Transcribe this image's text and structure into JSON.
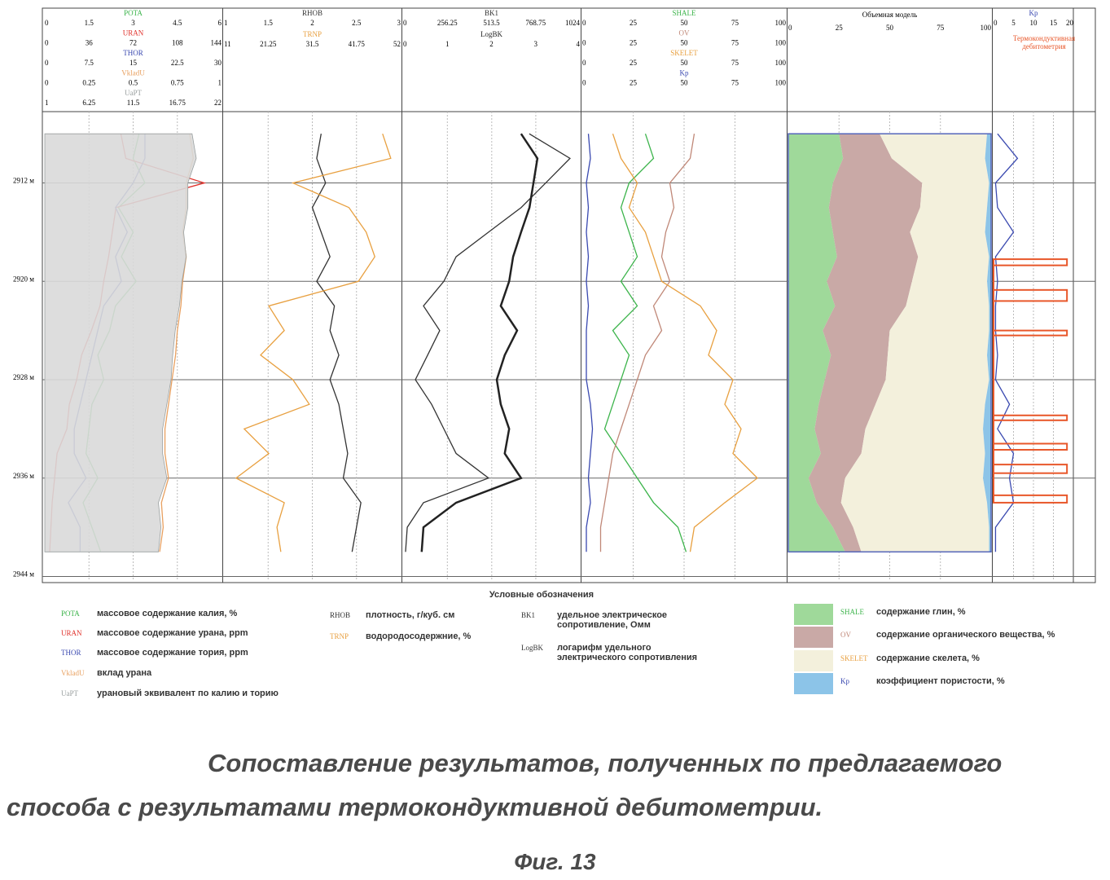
{
  "chart_data": {
    "type": "well-log",
    "depth": [
      2908,
      2910,
      2912,
      2914,
      2916,
      2918,
      2920,
      2922,
      2924,
      2926,
      2928,
      2930,
      2932,
      2934,
      2936,
      2938,
      2940,
      2942
    ],
    "ylim": [
      2906.2,
      2944.3
    ],
    "yticks": [
      {
        "value": 2912,
        "label": "2912 м"
      },
      {
        "value": 2920,
        "label": "2920 м"
      },
      {
        "value": 2928,
        "label": "2928 м"
      },
      {
        "value": 2936,
        "label": "2936 м"
      },
      {
        "value": 2944,
        "label": "2944 м"
      }
    ],
    "tracks": [
      {
        "type": "curves",
        "curves": [
          {
            "name": "POTA",
            "color": "#3cb44b",
            "scale": [
              0,
              1.5,
              3,
              4.5,
              6
            ],
            "values": [
              3.2,
              3.0,
              3.4,
              2.5,
              3.0,
              2.6,
              3.1,
              2.4,
              2.2,
              1.8,
              2.0,
              1.6,
              1.5,
              1.4,
              1.8,
              1.3,
              1.6,
              1.9
            ]
          },
          {
            "name": "URAN",
            "color": "#e0302a",
            "scale": [
              0,
              36,
              72,
              108,
              144
            ],
            "values": [
              62,
              66,
              130,
              58,
              55,
              52,
              48,
              45,
              38,
              30,
              26,
              20,
              18,
              10,
              8,
              6,
              5,
              4
            ]
          },
          {
            "name": "THOR",
            "color": "#3a49b0",
            "scale": [
              0,
              7.5,
              15,
              22.5,
              30
            ],
            "values": [
              17,
              17,
              15,
              12,
              14,
              12,
              13,
              10,
              9,
              8,
              7,
              6,
              5,
              5,
              7,
              4,
              6,
              6
            ]
          },
          {
            "name": "VkladU",
            "color": "#e8a060",
            "scale": [
              0,
              0.25,
              0.5,
              0.75,
              1
            ],
            "values": [
              0.82,
              0.84,
              0.8,
              0.8,
              0.78,
              0.8,
              0.78,
              0.77,
              0.75,
              0.74,
              0.72,
              0.7,
              0.68,
              0.68,
              0.7,
              0.66,
              0.67,
              0.65
            ]
          },
          {
            "name": "UaPT",
            "color": "#9aa0a0",
            "fill": "#d9d9d9",
            "scale": [
              1,
              6.25,
              11.5,
              16.75,
              22
            ],
            "values": [
              18.5,
              19,
              18,
              18,
              17.5,
              17.8,
              17.3,
              17,
              16.5,
              16.2,
              16,
              15.5,
              15,
              15,
              15.5,
              14.5,
              14.8,
              14.5
            ]
          }
        ]
      },
      {
        "type": "curves",
        "curves": [
          {
            "name": "RHOB",
            "color": "#333333",
            "scale": [
              1,
              1.5,
              2,
              2.5,
              3
            ],
            "values": [
              2.1,
              2.05,
              2.15,
              2.0,
              2.1,
              2.2,
              2.05,
              2.25,
              2.2,
              2.3,
              2.2,
              2.3,
              2.35,
              2.4,
              2.35,
              2.55,
              2.5,
              2.45
            ]
          },
          {
            "name": "TRNP",
            "color": "#e8a040",
            "scale": [
              11,
              21.25,
              31.5,
              41.75,
              52
            ],
            "values": [
              47.8,
              49.7,
              27,
              40,
              44,
              46,
              42.2,
              21.4,
              25,
              19.5,
              27,
              30.8,
              15.7,
              21.4,
              13.8,
              25,
              23.3,
              24.2
            ]
          }
        ]
      },
      {
        "type": "curves",
        "curves": [
          {
            "name": "BK1",
            "color": "#333333",
            "scale": [
              0,
              256.25,
              513.5,
              768.75,
              1024
            ],
            "values": [
              731,
              967,
              826,
              684,
              495,
              307,
              236,
              118,
              212,
              142,
              71,
              165,
              236,
              307,
              495,
              118,
              24,
              14
            ]
          },
          {
            "name": "LogBK",
            "color": "#222222",
            "width": 2.5,
            "scale": [
              0,
              1,
              2,
              3,
              4
            ],
            "values": [
              2.67,
              3.04,
              2.95,
              2.86,
              2.67,
              2.49,
              2.4,
              2.21,
              2.58,
              2.3,
              2.12,
              2.21,
              2.4,
              2.3,
              2.67,
              1.2,
              0.46,
              0.42
            ]
          }
        ]
      },
      {
        "type": "curves",
        "curves": [
          {
            "name": "SHALE",
            "color": "#3cb44b",
            "scale": [
              0,
              25,
              50,
              75,
              100
            ],
            "values": [
              31,
              35,
              23,
              19,
              23,
              27,
              19,
              27,
              15,
              23,
              19,
              15,
              11,
              19,
              27,
              35,
              47,
              51
            ]
          },
          {
            "name": "OV",
            "color": "#c08878",
            "scale": [
              0,
              25,
              50,
              75,
              100
            ],
            "values": [
              55,
              53,
              43,
              45,
              41,
              39,
              43,
              35,
              39,
              31,
              27,
              23,
              19,
              15,
              13,
              11,
              9,
              9
            ]
          },
          {
            "name": "SKELET",
            "color": "#e8a040",
            "scale": [
              0,
              25,
              50,
              75,
              100
            ],
            "values": [
              15,
              19,
              27,
              23,
              31,
              35,
              39,
              58,
              66,
              62,
              74,
              70,
              78,
              74,
              86,
              70,
              55,
              53
            ]
          },
          {
            "name": "Kp",
            "color": "#3a49b0",
            "scale": [
              0,
              25,
              50,
              75,
              100
            ],
            "values": [
              3,
              4,
              2,
              3,
              2,
              3,
              2,
              3,
              2,
              2,
              2,
              4,
              5,
              4,
              3,
              4,
              2,
              2
            ]
          }
        ]
      },
      {
        "type": "stacked-area",
        "title": "Объемная модель",
        "scale": [
          0,
          25,
          50,
          75,
          100
        ],
        "series": [
          {
            "name": "SHALE",
            "color": "#9fd99a",
            "values": [
              25,
              27,
              22,
              20,
              22,
              24,
              19,
              23,
              17,
              21,
              18,
              15,
              13,
              16,
              10,
              14,
              22,
              28
            ]
          },
          {
            "name": "OV",
            "color": "#c9a9a6",
            "values": [
              20,
              24,
              44,
              45,
              38,
              40,
              42,
              35,
              33,
              28,
              30,
              28,
              25,
              20,
              18,
              12,
              10,
              8
            ]
          },
          {
            "name": "SKELET",
            "color": "#f3f0dc",
            "values": [
              53,
              46,
              33,
              33,
              37,
              35,
              37,
              41,
              49,
              49,
              51,
              54,
              58,
              61,
              68,
              72,
              67,
              63
            ]
          },
          {
            "name": "Kp",
            "color": "#8cc4e8",
            "values": [
              2,
              3,
              1,
              2,
              3,
              1,
              2,
              1,
              1,
              2,
              1,
              3,
              4,
              3,
              4,
              2,
              1,
              1
            ]
          }
        ]
      },
      {
        "type": "curves",
        "title": "Термокондуктивная дебитометрия",
        "interval_color": "#e8572a",
        "interval_level": 18.4,
        "intervals": [
          [
            2918.2,
            2918.7
          ],
          [
            2920.7,
            2921.6
          ],
          [
            2924.0,
            2924.4
          ],
          [
            2930.9,
            2931.3
          ],
          [
            2933.2,
            2933.7
          ],
          [
            2934.9,
            2935.6
          ],
          [
            2937.4,
            2938.0
          ]
        ],
        "curves": [
          {
            "name": "Kp",
            "color": "#3a49b0",
            "scale": [
              0,
              5,
              10,
              15,
              20
            ],
            "values": [
              1,
              6,
              0.5,
              1,
              5,
              0.5,
              1,
              0.5,
              0.5,
              1,
              0.5,
              4,
              1,
              5,
              4,
              5,
              0.5,
              0.5
            ]
          }
        ]
      }
    ]
  },
  "legend": {
    "title": "Условные обозначения",
    "items": [
      {
        "code": "POTA",
        "color": "#3cb44b",
        "text": "массовое содержание калия, %"
      },
      {
        "code": "URAN",
        "color": "#e0302a",
        "text": "массовое содержание урана, ppm"
      },
      {
        "code": "THOR",
        "color": "#3a49b0",
        "text": "массовое содержание тория, ppm"
      },
      {
        "code": "VkladU",
        "color": "#e8a060",
        "text": "вклад урана"
      },
      {
        "code": "UaPT",
        "color": "#9aa0a0",
        "text": "урановый эквивалент по калию и торию"
      },
      {
        "code": "RHOB",
        "color": "#333333",
        "text": "плотность, г/куб. см"
      },
      {
        "code": "TRNP",
        "color": "#e8a040",
        "text": "водородосодержние, %"
      },
      {
        "code": "BK1",
        "color": "#333333",
        "text": "удельное электрическое сопротивление, Омм"
      },
      {
        "code": "LogBK",
        "color": "#333333",
        "text": "логарифм удельного электрического сопротивления"
      },
      {
        "code": "SHALE",
        "color": "#3cb44b",
        "swatch": "#9fd99a",
        "text": "содержание глин, %"
      },
      {
        "code": "OV",
        "color": "#c08878",
        "swatch": "#c9a9a6",
        "text": "содержание органического вещества, %"
      },
      {
        "code": "SKELET",
        "color": "#e8a040",
        "swatch": "#f3f0dc",
        "text": "содержание скелета, %"
      },
      {
        "code": "Kp",
        "color": "#3a49b0",
        "swatch": "#8cc4e8",
        "text": "коэффициент пористости, %"
      }
    ]
  },
  "caption": "Сопоставление результатов, полученных по предлагаемого способа с результатами термокондуктивной дебитометрии.",
  "figure": "Фиг. 13"
}
